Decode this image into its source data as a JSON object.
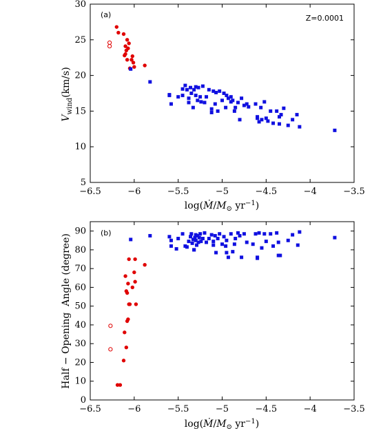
{
  "chart_data": [
    {
      "type": "scatter",
      "panel_label": "(a)",
      "annotation": "Z=0.0001",
      "xlabel": "log(Ṁ/M⊙ yr⁻¹)",
      "ylabel": "V_wind (km/s)",
      "xlim": [
        -6.5,
        -3.5
      ],
      "ylim": [
        5,
        30
      ],
      "xticks": [
        "−6.5",
        "−6",
        "−5.5",
        "−5",
        "−4.5",
        "−4",
        "−3.5"
      ],
      "xtick_values": [
        -6.5,
        -6,
        -5.5,
        -5,
        -4.5,
        -4,
        -3.5
      ],
      "yticks": [
        "5",
        "10",
        "15",
        "20",
        "25",
        "30"
      ],
      "ytick_values": [
        5,
        10,
        15,
        20,
        25,
        30
      ],
      "series": [
        {
          "marker": "circle",
          "color": "#e00000",
          "x": [
            -6.2,
            -6.18,
            -6.12,
            -6.1,
            -6.08,
            -6.06,
            -6.07,
            -6.09,
            -6.1,
            -6.11,
            -6.08,
            -6.02,
            -6.03,
            -6.01,
            -6.05,
            -6.0,
            -5.88
          ],
          "y": [
            26.8,
            26.0,
            25.8,
            24.1,
            25.0,
            24.5,
            23.8,
            23.5,
            23.0,
            22.8,
            22.2,
            22.7,
            22.2,
            21.8,
            21.0,
            21.2,
            21.4
          ]
        },
        {
          "marker": "open-circle",
          "color": "#e00000",
          "x": [
            -6.28,
            -6.28
          ],
          "y": [
            24.6,
            24.1
          ]
        },
        {
          "marker": "square",
          "color": "#1010e0",
          "x": [
            -6.04,
            -5.82,
            -5.6,
            -5.58,
            -5.5,
            -5.45,
            -5.42,
            -5.4,
            -5.38,
            -5.36,
            -5.35,
            -5.33,
            -5.32,
            -5.3,
            -5.3,
            -5.28,
            -5.27,
            -5.25,
            -5.24,
            -5.22,
            -5.2,
            -5.18,
            -5.15,
            -5.12,
            -5.1,
            -5.08,
            -5.07,
            -5.05,
            -5.03,
            -5.0,
            -4.98,
            -4.96,
            -4.95,
            -4.93,
            -4.9,
            -4.88,
            -4.86,
            -4.85,
            -4.82,
            -4.8,
            -4.78,
            -4.75,
            -4.72,
            -4.7,
            -4.62,
            -4.6,
            -4.58,
            -4.56,
            -4.55,
            -4.52,
            -4.5,
            -4.48,
            -4.45,
            -4.42,
            -4.38,
            -4.35,
            -4.33,
            -4.3,
            -4.25,
            -4.2,
            -4.15,
            -4.12,
            -3.72,
            -5.6,
            -5.45,
            -5.38,
            -5.12,
            -4.9,
            -4.6,
            -4.35
          ],
          "y": [
            20.9,
            19.1,
            17.2,
            16.0,
            17.0,
            17.2,
            18.6,
            18.0,
            16.2,
            18.3,
            17.5,
            15.5,
            18.0,
            18.4,
            17.2,
            16.5,
            18.3,
            17.0,
            16.3,
            18.5,
            16.2,
            17.0,
            18.0,
            14.8,
            17.8,
            16.0,
            17.6,
            15.0,
            17.8,
            16.5,
            17.5,
            15.5,
            17.2,
            16.8,
            17.0,
            16.5,
            15.0,
            15.5,
            16.2,
            13.8,
            16.8,
            15.8,
            16.0,
            15.6,
            16.0,
            14.2,
            13.5,
            15.5,
            13.8,
            16.3,
            14.0,
            13.6,
            15.0,
            13.3,
            15.0,
            13.2,
            14.5,
            15.4,
            13.0,
            13.8,
            14.5,
            12.8,
            12.3,
            17.3,
            18.1,
            16.8,
            15.3,
            16.3,
            14.0,
            14.2
          ]
        }
      ]
    },
    {
      "type": "scatter",
      "panel_label": "(b)",
      "xlabel": "log(Ṁ/M⊙ yr⁻¹)",
      "ylabel": "Half − Opening  Angle (degree)",
      "xlim": [
        -6.5,
        -3.5
      ],
      "ylim": [
        0,
        95
      ],
      "xticks": [
        "−6.5",
        "−6",
        "−5.5",
        "−5",
        "−4.5",
        "−4",
        "−3.5"
      ],
      "xtick_values": [
        -6.5,
        -6,
        -5.5,
        -5,
        -4.5,
        -4,
        -3.5
      ],
      "yticks": [
        "0",
        "10",
        "20",
        "30",
        "40",
        "50",
        "60",
        "70",
        "80",
        "90"
      ],
      "ytick_values": [
        0,
        10,
        20,
        30,
        40,
        50,
        60,
        70,
        80,
        90
      ],
      "series": [
        {
          "marker": "circle",
          "color": "#e00000",
          "x": [
            -6.19,
            -6.16,
            -6.12,
            -6.11,
            -6.09,
            -6.08,
            -6.07,
            -6.06,
            -6.08,
            -6.09,
            -6.1,
            -6.06,
            -6.07,
            -6.05,
            -6.02,
            -6.0,
            -5.99,
            -5.98,
            -5.99,
            -5.88
          ],
          "y": [
            8,
            8,
            21,
            36,
            28,
            42,
            43,
            51,
            57,
            58,
            66,
            75,
            62,
            51,
            60,
            68,
            63,
            51,
            75,
            72
          ]
        },
        {
          "marker": "open-circle",
          "color": "#e00000",
          "x": [
            -6.27,
            -6.27
          ],
          "y": [
            39.5,
            27
          ]
        },
        {
          "marker": "square",
          "color": "#1010e0",
          "x": [
            -6.04,
            -5.82,
            -5.6,
            -5.58,
            -5.52,
            -5.5,
            -5.45,
            -5.42,
            -5.4,
            -5.38,
            -5.36,
            -5.35,
            -5.34,
            -5.33,
            -5.32,
            -5.31,
            -5.3,
            -5.3,
            -5.29,
            -5.28,
            -5.27,
            -5.26,
            -5.25,
            -5.24,
            -5.22,
            -5.2,
            -5.18,
            -5.15,
            -5.12,
            -5.1,
            -5.08,
            -5.07,
            -5.05,
            -5.03,
            -5.0,
            -4.98,
            -4.96,
            -4.95,
            -4.93,
            -4.9,
            -4.88,
            -4.86,
            -4.85,
            -4.82,
            -4.8,
            -4.78,
            -4.75,
            -4.72,
            -4.65,
            -4.62,
            -4.6,
            -4.58,
            -4.55,
            -4.52,
            -4.5,
            -4.45,
            -4.42,
            -4.38,
            -4.36,
            -4.34,
            -4.25,
            -4.2,
            -4.14,
            -4.12,
            -3.72,
            -5.58,
            -5.32,
            -5.1,
            -4.95,
            -4.6,
            -4.36
          ],
          "y": [
            85.5,
            87.5,
            87.0,
            85.0,
            80.5,
            86.0,
            88.5,
            82.0,
            81.5,
            84.5,
            87.0,
            88.5,
            83.5,
            85.5,
            80.0,
            86.5,
            85.0,
            88.0,
            82.5,
            87.5,
            84.0,
            86.5,
            88.5,
            84.5,
            86.0,
            89.0,
            84.0,
            86.0,
            88.0,
            82.5,
            87.5,
            78.5,
            86.0,
            88.5,
            83.0,
            87.0,
            82.0,
            85.0,
            76.0,
            88.5,
            79.0,
            83.0,
            86.0,
            89.0,
            87.5,
            76.0,
            88.5,
            84.0,
            83.0,
            88.5,
            76.0,
            89.0,
            81.0,
            88.5,
            84.5,
            88.5,
            82.0,
            89.0,
            77.0,
            77.0,
            85.0,
            88.0,
            82.5,
            89.5,
            86.5,
            82.0,
            80.0,
            84.5,
            78.5,
            75.5,
            84.0
          ]
        }
      ]
    }
  ]
}
